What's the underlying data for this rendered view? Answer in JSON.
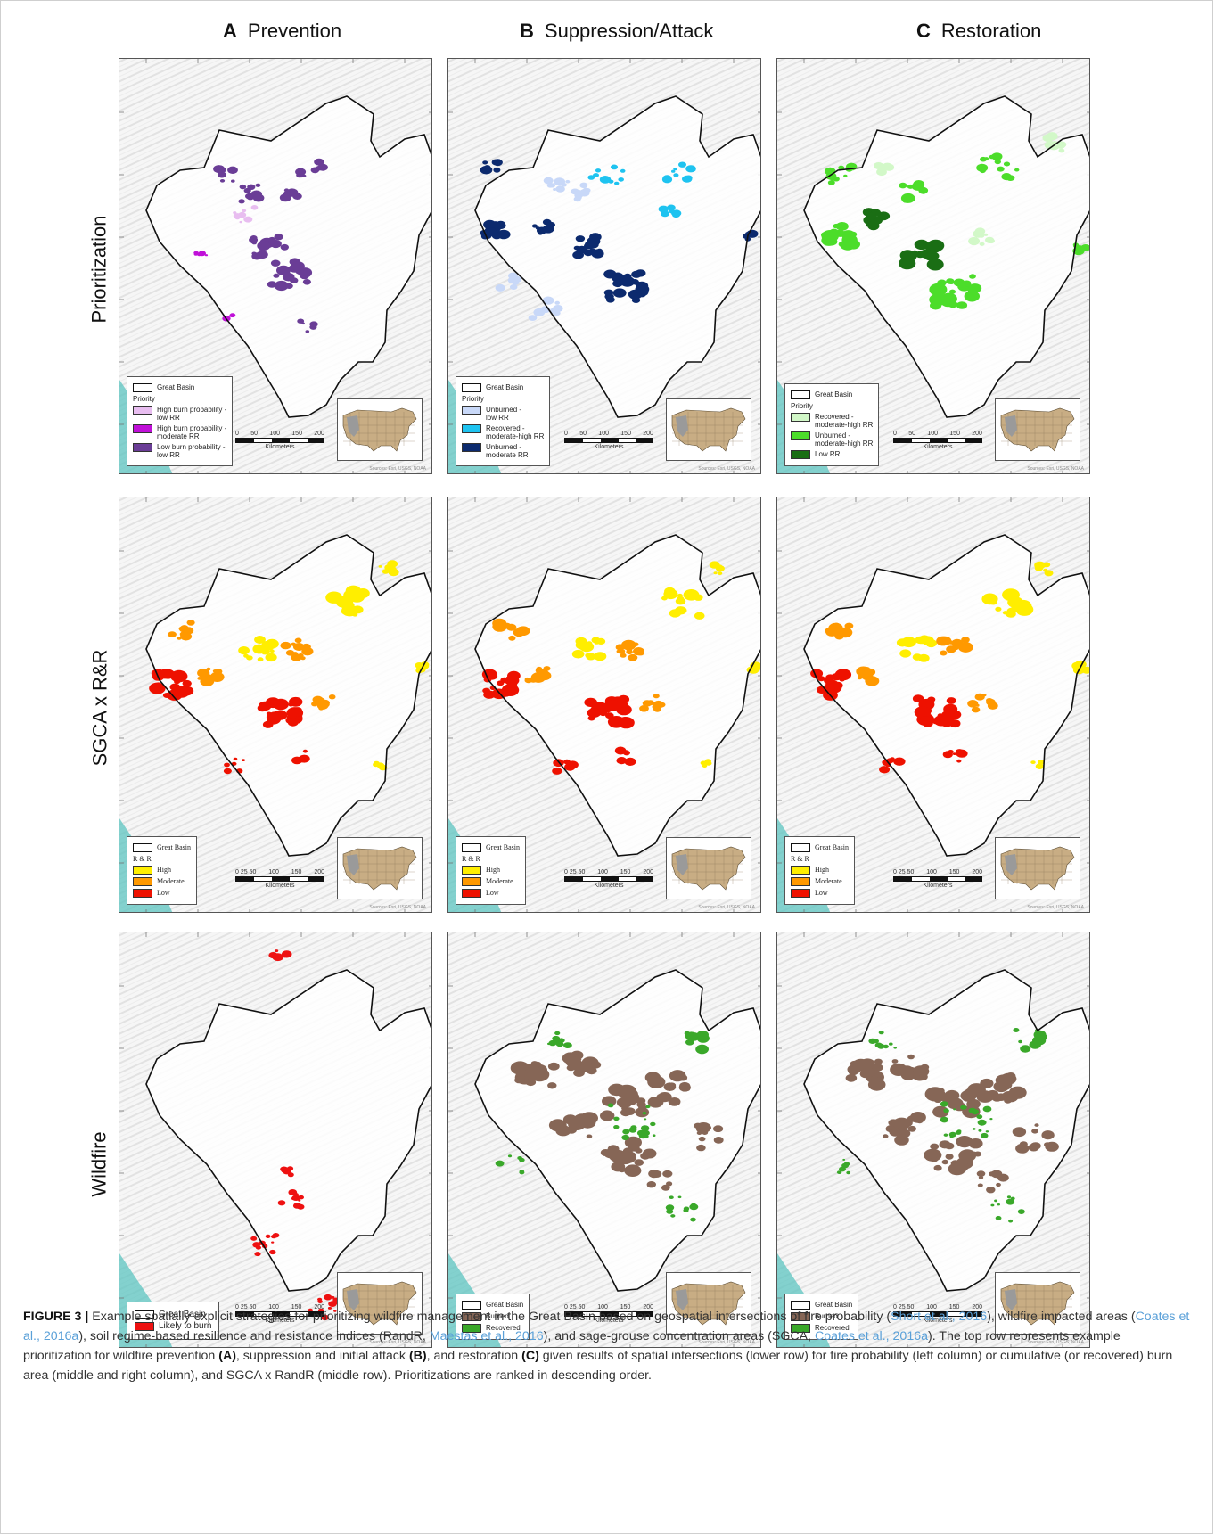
{
  "columns": [
    {
      "letter": "A",
      "title": "Prevention"
    },
    {
      "letter": "B",
      "title": "Suppression/Attack"
    },
    {
      "letter": "C",
      "title": "Restoration"
    }
  ],
  "rows": [
    "Prioritization",
    "SGCA x R&R",
    "Wildfire"
  ],
  "legends": {
    "great_basin": "Great Basin",
    "priority": "Priority",
    "rr": "R & R",
    "prevention": [
      "High burn probability -\nlow RR",
      "High burn probability -\nmoderate RR",
      "Low burn probability -\nlow RR"
    ],
    "suppression": [
      "Unburned -\nlow RR",
      "Recovered -\nmoderate-high RR",
      "Unburned -\nmoderate RR"
    ],
    "restoration": [
      "Recovered -\nmoderate-high RR",
      "Unburned -\nmoderate-high RR",
      "Low RR"
    ],
    "rr_levels": [
      "High",
      "Moderate",
      "Low"
    ],
    "wildfire": [
      "Likely to burn"
    ],
    "burn": [
      "Burned",
      "Recovered"
    ]
  },
  "colors": {
    "prevention": [
      "#e8bdf0",
      "#c010d8",
      "#6a3d96"
    ],
    "suppression": [
      "#c8d8f8",
      "#1ec3f0",
      "#0c2a6e"
    ],
    "restoration": [
      "#d2f8c8",
      "#4cdd2a",
      "#1a6e14"
    ],
    "rr": [
      "#ffee00",
      "#ff9900",
      "#ee1100"
    ],
    "wildfire": [
      "#ee1111"
    ],
    "burn": [
      "#866656",
      "#3aa82a"
    ],
    "boundary": "#111111",
    "inset_land": "#c8ad84",
    "inset_basin": "#9a9a9a"
  },
  "scale": {
    "ticks": [
      "0",
      "50",
      "100",
      "150",
      "200"
    ],
    "ticks_fine": [
      "0 25 50",
      "100",
      "150",
      "200"
    ],
    "unit": "Kilometers"
  },
  "source": "Sources: Esri, USGS, NOAA",
  "caption": {
    "label": "FIGURE 3 |",
    "p1": " Example spatially explicit strategies for prioritizing wildfire management in the Great Basin based on geospatial intersections of fire probability (",
    "r1": "Short et al., 2016",
    "p2": "), wildfire impacted areas (",
    "r2": "Coates et al., 2016a",
    "p3": "), soil regime-based resilience and resistance indices (RandR, ",
    "r3": "Maestas et al., 2016",
    "p4": "), and sage-grouse concentration areas (SGCA, ",
    "r4": "Coates et al., 2016a",
    "p5": "). The top row represents example prioritization for wildfire prevention ",
    "b1": "(A)",
    "p6": ", suppression and initial attack ",
    "b2": "(B)",
    "p7": ", and restoration ",
    "b3": "(C)",
    "p8": " given results of spatial intersections (lower row) for fire probability (left column) or cumulative (or recovered) burn area (middle and right column), and SGCA x RandR (middle row). Prioritizations are ranked in descending order."
  }
}
